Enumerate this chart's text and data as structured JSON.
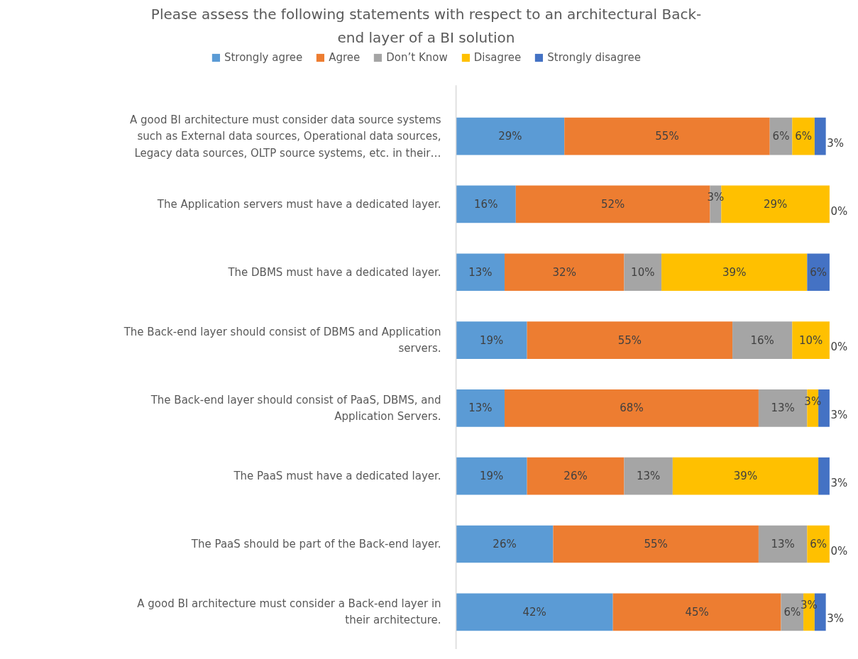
{
  "chart_data": {
    "type": "bar",
    "orientation": "horizontal",
    "stacked": true,
    "legend": "top",
    "grid": false,
    "title": "Please assess the following statements with respect to an architectural Back-end layer of a BI solution",
    "categories": [
      "A good BI architecture must consider data source systems such as External data sources, Operational data sources, Legacy data sources, OLTP source systems, etc. in their…",
      "The Application servers must have a dedicated layer.",
      "The DBMS must have a dedicated layer.",
      "The Back-end layer should consist of DBMS and Application servers.",
      "The Back-end layer should consist of PaaS, DBMS, and Application Servers.",
      "The PaaS must have a dedicated layer.",
      "The PaaS should be part of the Back-end layer.",
      "A good BI architecture must consider a Back-end layer in their architecture."
    ],
    "series": [
      {
        "name": "Strongly agree",
        "color": "#5b9bd5",
        "values": [
          29,
          16,
          13,
          19,
          13,
          19,
          26,
          42
        ],
        "value_labels": [
          "29%",
          "16%",
          "13%",
          "19%",
          "13%",
          "19%",
          "26%",
          "42%"
        ]
      },
      {
        "name": "Agree",
        "color": "#ed7d31",
        "values": [
          55,
          52,
          32,
          55,
          68,
          26,
          55,
          45
        ],
        "value_labels": [
          "55%",
          "52%",
          "32%",
          "55%",
          "68%",
          "26%",
          "55%",
          "45%"
        ]
      },
      {
        "name": "Don’t Know",
        "color": "#a5a5a5",
        "values": [
          6,
          3,
          10,
          16,
          13,
          13,
          13,
          6
        ],
        "value_labels": [
          "6%",
          "3%",
          "10%",
          "16%",
          "13%",
          "13%",
          "13%",
          "6%"
        ]
      },
      {
        "name": "Disagree",
        "color": "#ffc000",
        "values": [
          6,
          29,
          39,
          10,
          3,
          39,
          6,
          3
        ],
        "value_labels": [
          "6%",
          "29%",
          "39%",
          "10%",
          "3%",
          "39%",
          "6%",
          "3%"
        ]
      },
      {
        "name": "Strongly disagree",
        "color": "#4472c4",
        "values": [
          3,
          0,
          6,
          0,
          3,
          3,
          0,
          3
        ],
        "value_labels": [
          "3%",
          "0%",
          "6%",
          "0%",
          "3%",
          "3%",
          "0%",
          "3%"
        ]
      }
    ]
  }
}
